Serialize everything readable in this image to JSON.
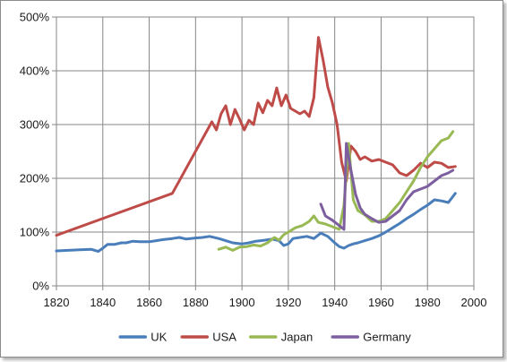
{
  "chart_data": {
    "type": "line",
    "title": "",
    "xlabel": "",
    "ylabel": "",
    "xlim": [
      1820,
      2000
    ],
    "ylim": [
      0,
      500
    ],
    "x_ticks": [
      "1820",
      "1840",
      "1860",
      "1880",
      "1900",
      "1920",
      "1940",
      "1960",
      "1980",
      "2000"
    ],
    "y_ticks": [
      "0%",
      "100%",
      "200%",
      "300%",
      "400%",
      "500%"
    ],
    "grid": true,
    "legend_position": "bottom",
    "series": [
      {
        "name": "UK",
        "color": "#4a7ebb",
        "points": [
          [
            1820,
            65
          ],
          [
            1825,
            66
          ],
          [
            1830,
            67
          ],
          [
            1835,
            68
          ],
          [
            1838,
            64
          ],
          [
            1840,
            70
          ],
          [
            1842,
            77
          ],
          [
            1845,
            77
          ],
          [
            1848,
            80
          ],
          [
            1850,
            80
          ],
          [
            1853,
            83
          ],
          [
            1856,
            82
          ],
          [
            1860,
            82
          ],
          [
            1863,
            84
          ],
          [
            1866,
            86
          ],
          [
            1870,
            88
          ],
          [
            1873,
            90
          ],
          [
            1876,
            87
          ],
          [
            1880,
            89
          ],
          [
            1883,
            90
          ],
          [
            1886,
            92
          ],
          [
            1890,
            88
          ],
          [
            1893,
            84
          ],
          [
            1896,
            80
          ],
          [
            1900,
            78
          ],
          [
            1903,
            80
          ],
          [
            1906,
            83
          ],
          [
            1910,
            85
          ],
          [
            1913,
            87
          ],
          [
            1916,
            84
          ],
          [
            1918,
            75
          ],
          [
            1920,
            78
          ],
          [
            1922,
            88
          ],
          [
            1925,
            90
          ],
          [
            1928,
            92
          ],
          [
            1931,
            88
          ],
          [
            1934,
            98
          ],
          [
            1937,
            92
          ],
          [
            1940,
            80
          ],
          [
            1942,
            73
          ],
          [
            1944,
            70
          ],
          [
            1946,
            75
          ],
          [
            1948,
            78
          ],
          [
            1950,
            80
          ],
          [
            1953,
            84
          ],
          [
            1956,
            88
          ],
          [
            1959,
            93
          ],
          [
            1962,
            100
          ],
          [
            1965,
            108
          ],
          [
            1968,
            116
          ],
          [
            1971,
            125
          ],
          [
            1974,
            133
          ],
          [
            1977,
            142
          ],
          [
            1980,
            150
          ],
          [
            1983,
            160
          ],
          [
            1986,
            158
          ],
          [
            1989,
            155
          ],
          [
            1992,
            172
          ]
        ]
      },
      {
        "name": "USA",
        "color": "#be4b48",
        "points": [
          [
            1820,
            94
          ],
          [
            1870,
            172
          ],
          [
            1887,
            305
          ],
          [
            1889,
            290
          ],
          [
            1891,
            320
          ],
          [
            1893,
            335
          ],
          [
            1895,
            300
          ],
          [
            1897,
            328
          ],
          [
            1899,
            310
          ],
          [
            1901,
            290
          ],
          [
            1903,
            308
          ],
          [
            1905,
            300
          ],
          [
            1907,
            340
          ],
          [
            1909,
            322
          ],
          [
            1911,
            345
          ],
          [
            1913,
            335
          ],
          [
            1915,
            368
          ],
          [
            1917,
            335
          ],
          [
            1919,
            355
          ],
          [
            1921,
            330
          ],
          [
            1923,
            325
          ],
          [
            1925,
            320
          ],
          [
            1927,
            325
          ],
          [
            1929,
            315
          ],
          [
            1931,
            350
          ],
          [
            1933,
            462
          ],
          [
            1935,
            420
          ],
          [
            1937,
            370
          ],
          [
            1939,
            340
          ],
          [
            1941,
            300
          ],
          [
            1943,
            230
          ],
          [
            1945,
            195
          ],
          [
            1947,
            260
          ],
          [
            1949,
            250
          ],
          [
            1951,
            235
          ],
          [
            1953,
            240
          ],
          [
            1956,
            232
          ],
          [
            1959,
            235
          ],
          [
            1962,
            230
          ],
          [
            1965,
            225
          ],
          [
            1968,
            210
          ],
          [
            1971,
            205
          ],
          [
            1974,
            215
          ],
          [
            1977,
            228
          ],
          [
            1980,
            220
          ],
          [
            1983,
            230
          ],
          [
            1986,
            228
          ],
          [
            1989,
            220
          ],
          [
            1992,
            222
          ]
        ]
      },
      {
        "name": "Japan",
        "color": "#98b954",
        "points": [
          [
            1890,
            68
          ],
          [
            1893,
            72
          ],
          [
            1896,
            66
          ],
          [
            1899,
            72
          ],
          [
            1902,
            73
          ],
          [
            1905,
            76
          ],
          [
            1908,
            74
          ],
          [
            1911,
            80
          ],
          [
            1914,
            90
          ],
          [
            1916,
            85
          ],
          [
            1918,
            95
          ],
          [
            1920,
            100
          ],
          [
            1923,
            108
          ],
          [
            1926,
            112
          ],
          [
            1929,
            120
          ],
          [
            1931,
            130
          ],
          [
            1933,
            118
          ],
          [
            1936,
            115
          ],
          [
            1939,
            110
          ],
          [
            1942,
            105
          ],
          [
            1944,
            150
          ],
          [
            1946,
            265
          ],
          [
            1948,
            160
          ],
          [
            1950,
            140
          ],
          [
            1953,
            132
          ],
          [
            1956,
            120
          ],
          [
            1959,
            120
          ],
          [
            1962,
            125
          ],
          [
            1965,
            140
          ],
          [
            1968,
            155
          ],
          [
            1971,
            175
          ],
          [
            1974,
            195
          ],
          [
            1977,
            220
          ],
          [
            1980,
            240
          ],
          [
            1983,
            255
          ],
          [
            1986,
            270
          ],
          [
            1989,
            275
          ],
          [
            1991,
            287
          ]
        ]
      },
      {
        "name": "Germany",
        "color": "#7d5fa0",
        "points": [
          [
            1934,
            152
          ],
          [
            1936,
            130
          ],
          [
            1939,
            122
          ],
          [
            1942,
            112
          ],
          [
            1944,
            105
          ],
          [
            1945,
            265
          ],
          [
            1947,
            215
          ],
          [
            1949,
            170
          ],
          [
            1951,
            145
          ],
          [
            1953,
            133
          ],
          [
            1956,
            125
          ],
          [
            1959,
            118
          ],
          [
            1962,
            120
          ],
          [
            1965,
            130
          ],
          [
            1968,
            140
          ],
          [
            1971,
            160
          ],
          [
            1974,
            175
          ],
          [
            1977,
            180
          ],
          [
            1980,
            185
          ],
          [
            1983,
            195
          ],
          [
            1986,
            205
          ],
          [
            1989,
            210
          ],
          [
            1991,
            215
          ]
        ]
      }
    ]
  }
}
